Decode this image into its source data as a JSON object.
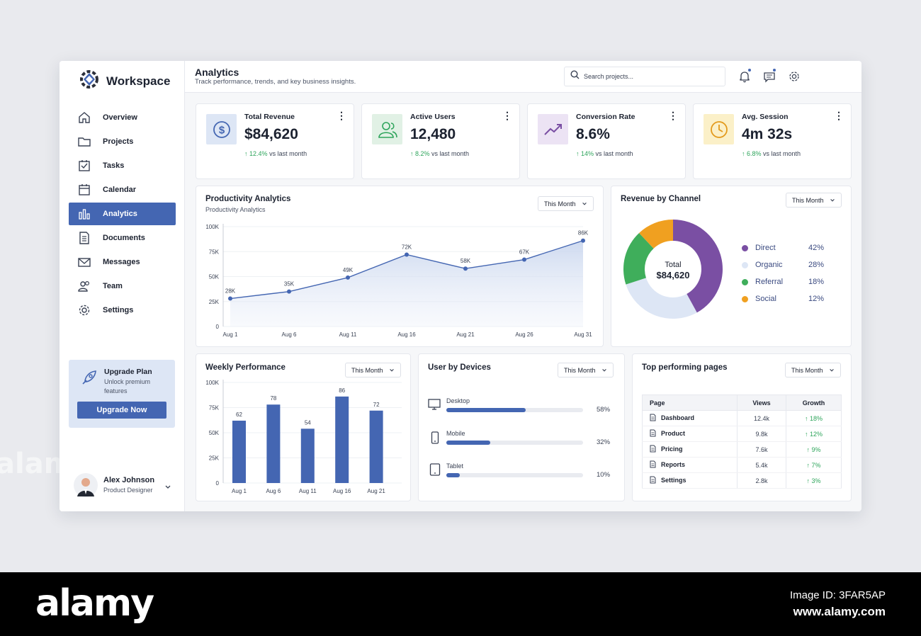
{
  "brand": {
    "name": "Workspace"
  },
  "sidebar": {
    "items": [
      {
        "label": "Overview",
        "icon": "home-icon",
        "active": false
      },
      {
        "label": "Projects",
        "icon": "folder-icon",
        "active": false
      },
      {
        "label": "Tasks",
        "icon": "checklist-icon",
        "active": false
      },
      {
        "label": "Calendar",
        "icon": "calendar-icon",
        "active": false
      },
      {
        "label": "Analytics",
        "icon": "bar-chart-icon",
        "active": true
      },
      {
        "label": "Documents",
        "icon": "document-icon",
        "active": false
      },
      {
        "label": "Messages",
        "icon": "mail-icon",
        "active": false
      },
      {
        "label": "Team",
        "icon": "team-icon",
        "active": false
      },
      {
        "label": "Settings",
        "icon": "gear-icon",
        "active": false
      }
    ],
    "upgrade": {
      "title": "Upgrade Plan",
      "subtitle": "Unlock premium features",
      "button": "Upgrade Now"
    },
    "user": {
      "name": "Alex Johnson",
      "role": "Product Designer"
    }
  },
  "header": {
    "title": "Analytics",
    "subtitle": "Track performance, trends, and key business insights.",
    "search_placeholder": "Search projects..."
  },
  "kpis": [
    {
      "label": "Total Revenue",
      "value": "$84,620",
      "delta": "12.4%",
      "delta_note": "vs last month",
      "icon": "dollar-icon",
      "bg": "#dde6f5",
      "color": "#4466b2"
    },
    {
      "label": "Active Users",
      "value": "12,480",
      "delta": "8.2%",
      "delta_note": "vs last month",
      "icon": "users-icon",
      "bg": "#e1f1e5",
      "color": "#2fa55c"
    },
    {
      "label": "Conversion Rate",
      "value": "8.6%",
      "delta": "14%",
      "delta_note": "vs last month",
      "icon": "trend-up-icon",
      "bg": "#ece3f4",
      "color": "#7a4fa3"
    },
    {
      "label": "Avg. Session",
      "value": "4m 32s",
      "delta": "6.8%",
      "delta_note": "vs last month",
      "icon": "clock-icon",
      "bg": "#fbf0c8",
      "color": "#e39a1c"
    }
  ],
  "productivity": {
    "title": "Productivity Analytics",
    "subtitle": "Productivity Analytics",
    "filter": "This Month",
    "chart_data": {
      "type": "area",
      "x": [
        "Aug 1",
        "Aug 6",
        "Aug 11",
        "Aug 16",
        "Aug 21",
        "Aug 26",
        "Aug 31"
      ],
      "series": [
        {
          "values": [
            28000,
            35000,
            49000,
            72000,
            58000,
            67000,
            86000
          ]
        }
      ],
      "point_labels": [
        "28K",
        "35K",
        "49K",
        "72K",
        "58K",
        "67K",
        "86K"
      ],
      "yticks": [
        "0",
        "25K",
        "50K",
        "75K",
        "100K"
      ],
      "ylim": [
        0,
        100000
      ],
      "color": "#4466b2"
    }
  },
  "revenue_channel": {
    "title": "Revenue by Channel",
    "filter": "This Month",
    "center_label": "Total",
    "center_value": "$84,620",
    "chart_data": {
      "type": "pie",
      "labels": [
        "Direct",
        "Organic",
        "Referral",
        "Social"
      ],
      "values": [
        42,
        28,
        18,
        12
      ],
      "display": [
        "42%",
        "28%",
        "18%",
        "12%"
      ],
      "colors": [
        "#7a4fa3",
        "#dde6f5",
        "#3fae5b",
        "#f0a020"
      ]
    }
  },
  "weekly": {
    "title": "Weekly Performance",
    "filter": "This Month",
    "chart_data": {
      "type": "bar",
      "categories": [
        "Aug 1",
        "Aug 6",
        "Aug 11",
        "Aug 16",
        "Aug 21"
      ],
      "values": [
        62000,
        78000,
        54000,
        86000,
        72000
      ],
      "labels": [
        "62",
        "78",
        "54",
        "86",
        "72"
      ],
      "yticks": [
        "0",
        "25K",
        "50K",
        "75K",
        "100K"
      ],
      "ylim": [
        0,
        100000
      ],
      "color": "#4466b2"
    }
  },
  "devices": {
    "title": "User by Devices",
    "filter": "This Month",
    "items": [
      {
        "name": "Desktop",
        "pct": "58%",
        "value": 58,
        "icon": "monitor-icon"
      },
      {
        "name": "Mobile",
        "pct": "32%",
        "value": 32,
        "icon": "mobile-icon"
      },
      {
        "name": "Tablet",
        "pct": "10%",
        "value": 10,
        "icon": "tablet-icon"
      }
    ]
  },
  "top_pages": {
    "title": "Top performing pages",
    "filter": "This Month",
    "columns": [
      "Page",
      "Views",
      "Growth"
    ],
    "rows": [
      {
        "page": "Dashboard",
        "views": "12.4k",
        "growth": "18%"
      },
      {
        "page": "Product",
        "views": "9.8k",
        "growth": "12%"
      },
      {
        "page": "Pricing",
        "views": "7.6k",
        "growth": "9%"
      },
      {
        "page": "Reports",
        "views": "5.4k",
        "growth": "7%"
      },
      {
        "page": "Settings",
        "views": "2.8k",
        "growth": "3%"
      }
    ]
  },
  "watermark": {
    "brand": "alamy",
    "image_id": "Image ID: 3FAR5AP",
    "url": "www.alamy.com"
  }
}
